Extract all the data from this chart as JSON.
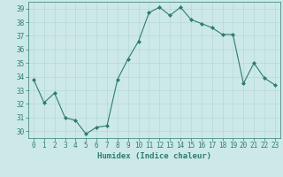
{
  "x": [
    0,
    1,
    2,
    3,
    4,
    5,
    6,
    7,
    8,
    9,
    10,
    11,
    12,
    13,
    14,
    15,
    16,
    17,
    18,
    19,
    20,
    21,
    22,
    23
  ],
  "y": [
    33.8,
    32.1,
    32.8,
    31.0,
    30.8,
    29.8,
    30.3,
    30.4,
    33.8,
    35.3,
    36.6,
    38.7,
    39.1,
    38.5,
    39.1,
    38.2,
    37.9,
    37.6,
    37.1,
    37.1,
    33.5,
    35.0,
    33.9,
    33.4
  ],
  "line_color": "#2d7d6e",
  "marker": "D",
  "marker_size": 2,
  "bg_color": "#cce9e7",
  "grid_color": "#b8d8d5",
  "xlabel": "Humidex (Indice chaleur)",
  "xlim": [
    -0.5,
    23.5
  ],
  "ylim": [
    29.5,
    39.5
  ],
  "yticks": [
    30,
    31,
    32,
    33,
    34,
    35,
    36,
    37,
    38,
    39
  ],
  "xticks": [
    0,
    1,
    2,
    3,
    4,
    5,
    6,
    7,
    8,
    9,
    10,
    11,
    12,
    13,
    14,
    15,
    16,
    17,
    18,
    19,
    20,
    21,
    22,
    23
  ],
  "tick_color": "#2d7d6e",
  "label_color": "#2d7d6e",
  "spine_color": "#2d7d6e",
  "tick_fontsize": 5.5,
  "xlabel_fontsize": 6.5
}
